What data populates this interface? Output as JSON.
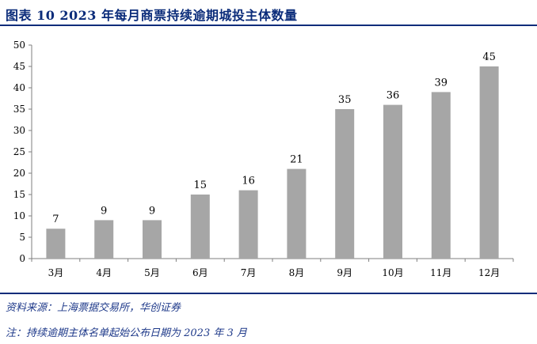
{
  "header": {
    "title": "图表 10   2023 年每月商票持续逾期城投主体数量"
  },
  "footer": {
    "source": "资料来源：上海票据交易所，华创证券",
    "note": "注：持续逾期主体名单起始公布日期为 2023 年 3 月"
  },
  "colors": {
    "bar": "#a6a6a6",
    "title": "#0b2c7a",
    "rule": "#0b2c7a",
    "footnote": "#1f3a8a"
  },
  "chart_data": {
    "type": "bar",
    "title": "",
    "xlabel": "",
    "ylabel": "",
    "categories": [
      "3月",
      "4月",
      "5月",
      "6月",
      "7月",
      "8月",
      "9月",
      "10月",
      "11月",
      "12月"
    ],
    "values": [
      7,
      9,
      9,
      15,
      16,
      21,
      35,
      36,
      39,
      45
    ],
    "ylim": [
      0,
      50
    ],
    "yticks": [
      0,
      5,
      10,
      15,
      20,
      25,
      30,
      35,
      40,
      45,
      50
    ],
    "grid": false,
    "legend": "none",
    "data_labels": true
  }
}
